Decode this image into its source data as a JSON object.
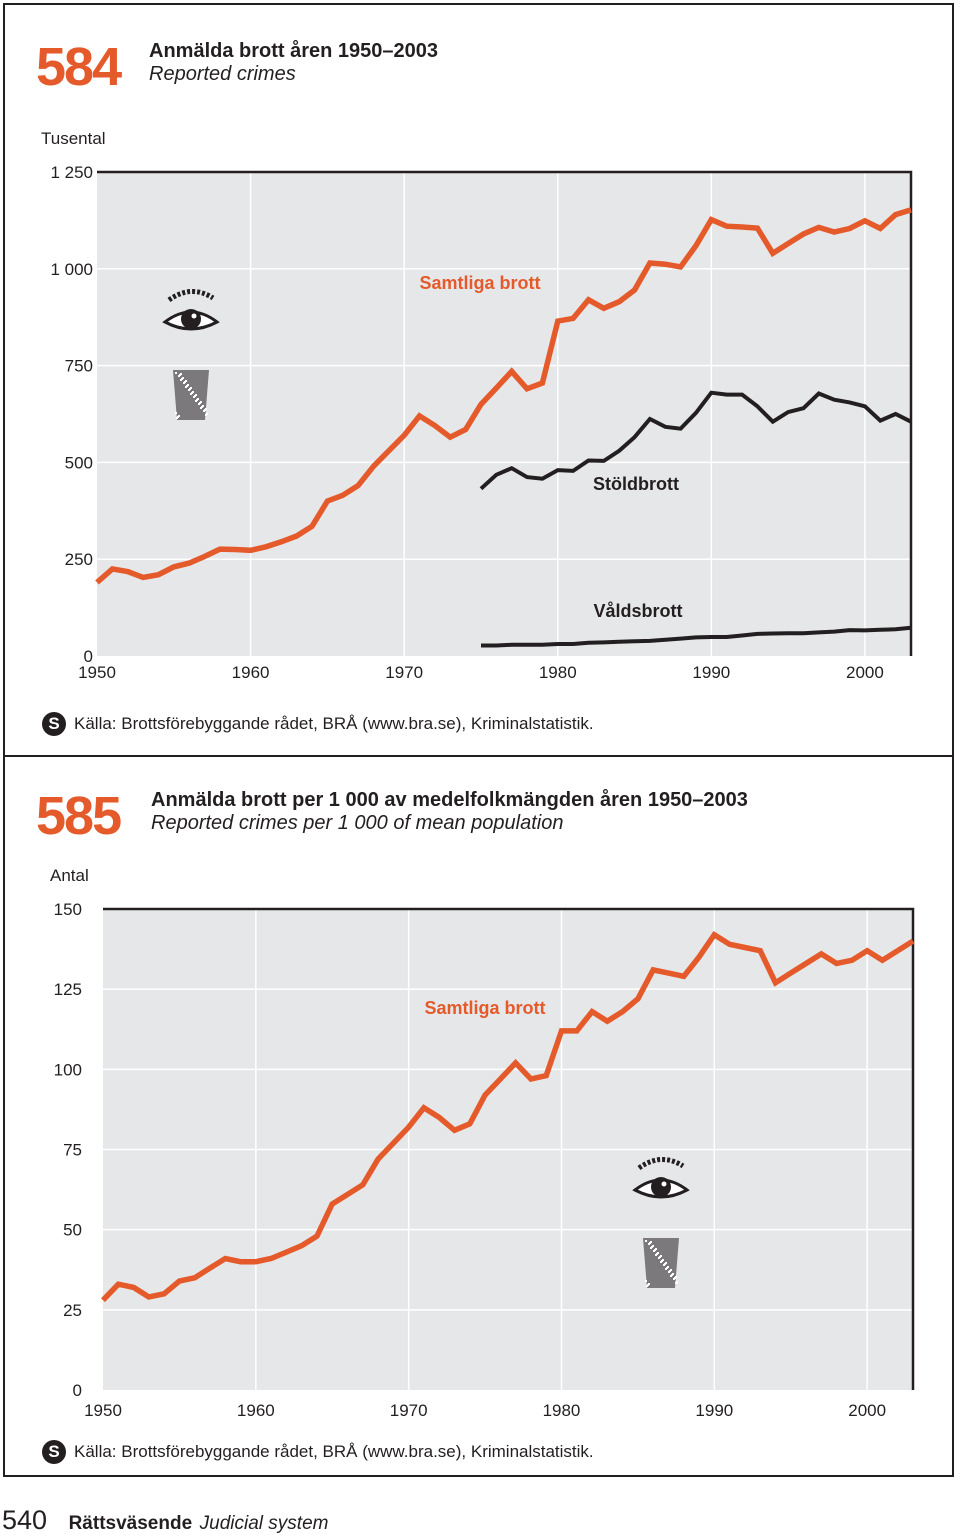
{
  "figures": [
    {
      "number": "584",
      "title": "Anmälda brott åren 1950–2003",
      "subtitle": "Reported crimes",
      "unit": "Tusental",
      "source": "Källa: Brottsförebyggande rådet, BRÅ (www.bra.se), Kriminalstatistik."
    },
    {
      "number": "585",
      "title": "Anmälda brott per 1 000 av medelfolkmängden åren 1950–2003",
      "subtitle": "Reported crimes per 1 000 of mean population",
      "unit": "Antal",
      "source": "Källa: Brottsförebyggande rådet, BRÅ (www.bra.se), Kriminalstatistik."
    }
  ],
  "source_icon": "S",
  "footer": {
    "page": "540",
    "section": "Rättsväsende",
    "section_en": "Judicial system"
  },
  "colors": {
    "orange": "#e55a2b",
    "black": "#231f20",
    "plot_bg": "#e6e7e8",
    "grid": "#ffffff"
  },
  "chart_data": [
    {
      "type": "line",
      "title": "Anmälda brott åren 1950–2003",
      "ylabel": "Tusental",
      "ylim": [
        0,
        1250
      ],
      "xlim": [
        1950,
        2003
      ],
      "xticks": [
        1950,
        1960,
        1970,
        1980,
        1990,
        2000
      ],
      "xtick_labels": [
        "1950",
        "1960",
        "1970",
        "1980",
        "1990",
        "2000"
      ],
      "yticks": [
        0,
        250,
        500,
        750,
        1000,
        1250
      ],
      "ytick_labels": [
        "0",
        "250",
        "500",
        "750",
        "1 000",
        "1 250"
      ],
      "grid": true,
      "series": [
        {
          "name": "Samtliga brott",
          "color": "#e55a2b",
          "x": [
            1950,
            1951,
            1952,
            1953,
            1954,
            1955,
            1956,
            1957,
            1958,
            1959,
            1960,
            1961,
            1962,
            1963,
            1964,
            1965,
            1966,
            1967,
            1968,
            1969,
            1970,
            1971,
            1972,
            1973,
            1974,
            1975,
            1976,
            1977,
            1978,
            1979,
            1980,
            1981,
            1982,
            1983,
            1984,
            1985,
            1986,
            1987,
            1988,
            1989,
            1990,
            1991,
            1992,
            1993,
            1994,
            1995,
            1996,
            1997,
            1998,
            1999,
            2000,
            2001,
            2002,
            2003
          ],
          "values": [
            190,
            225,
            218,
            203,
            210,
            230,
            240,
            257,
            276,
            275,
            273,
            282,
            295,
            310,
            335,
            400,
            415,
            440,
            490,
            530,
            570,
            620,
            595,
            565,
            585,
            650,
            692,
            735,
            690,
            705,
            865,
            872,
            920,
            898,
            915,
            945,
            1015,
            1012,
            1005,
            1060,
            1127,
            1110,
            1108,
            1105,
            1040,
            1065,
            1090,
            1107,
            1095,
            1104,
            1124,
            1104,
            1140,
            1152
          ]
        },
        {
          "name": "Stöldbrott",
          "color": "#231f20",
          "x": [
            1975,
            1976,
            1977,
            1978,
            1979,
            1980,
            1981,
            1982,
            1983,
            1984,
            1985,
            1986,
            1987,
            1988,
            1989,
            1990,
            1991,
            1992,
            1993,
            1994,
            1995,
            1996,
            1997,
            1998,
            1999,
            2000,
            2001,
            2002,
            2003
          ],
          "values": [
            432,
            468,
            485,
            462,
            458,
            480,
            478,
            505,
            504,
            530,
            565,
            612,
            592,
            587,
            628,
            680,
            675,
            675,
            645,
            605,
            630,
            640,
            678,
            662,
            655,
            645,
            608,
            625,
            605
          ]
        },
        {
          "name": "Våldsbrott",
          "color": "#231f20",
          "x": [
            1975,
            1976,
            1977,
            1978,
            1979,
            1980,
            1981,
            1982,
            1983,
            1984,
            1985,
            1986,
            1987,
            1988,
            1989,
            1990,
            1991,
            1992,
            1993,
            1994,
            1995,
            1996,
            1997,
            1998,
            1999,
            2000,
            2001,
            2002,
            2003
          ],
          "values": [
            27,
            27,
            29,
            29,
            29,
            31,
            31,
            34,
            35,
            37,
            38,
            39,
            42,
            45,
            48,
            49,
            49,
            53,
            57,
            58,
            59,
            59,
            61,
            63,
            67,
            66,
            68,
            69,
            73
          ]
        }
      ]
    },
    {
      "type": "line",
      "title": "Anmälda brott per 1 000 av medelfolkmängden åren 1950–2003",
      "ylabel": "Antal",
      "ylim": [
        0,
        150
      ],
      "xlim": [
        1950,
        2003
      ],
      "xticks": [
        1950,
        1960,
        1970,
        1980,
        1990,
        2000
      ],
      "xtick_labels": [
        "1950",
        "1960",
        "1970",
        "1980",
        "1990",
        "2000"
      ],
      "yticks": [
        0,
        25,
        50,
        75,
        100,
        125,
        150
      ],
      "ytick_labels": [
        "0",
        "25",
        "50",
        "75",
        "100",
        "125",
        "150"
      ],
      "grid": true,
      "series": [
        {
          "name": "Samtliga brott",
          "color": "#e55a2b",
          "x": [
            1950,
            1951,
            1952,
            1953,
            1954,
            1955,
            1956,
            1957,
            1958,
            1959,
            1960,
            1961,
            1962,
            1963,
            1964,
            1965,
            1966,
            1967,
            1968,
            1969,
            1970,
            1971,
            1972,
            1973,
            1974,
            1975,
            1976,
            1977,
            1978,
            1979,
            1980,
            1981,
            1982,
            1983,
            1984,
            1985,
            1986,
            1987,
            1988,
            1989,
            1990,
            1991,
            1992,
            1993,
            1994,
            1995,
            1996,
            1997,
            1998,
            1999,
            2000,
            2001,
            2002,
            2003
          ],
          "values": [
            28,
            33,
            32,
            29,
            30,
            34,
            35,
            38,
            41,
            40,
            40,
            41,
            43,
            45,
            48,
            58,
            61,
            64,
            72,
            77,
            82,
            88,
            85,
            81,
            83,
            92,
            97,
            102,
            97,
            98,
            112,
            112,
            118,
            115,
            118,
            122,
            131,
            130,
            129,
            135,
            142,
            139,
            138,
            137,
            127,
            130,
            133,
            136,
            133,
            134,
            137,
            134,
            137,
            140
          ]
        }
      ]
    }
  ]
}
